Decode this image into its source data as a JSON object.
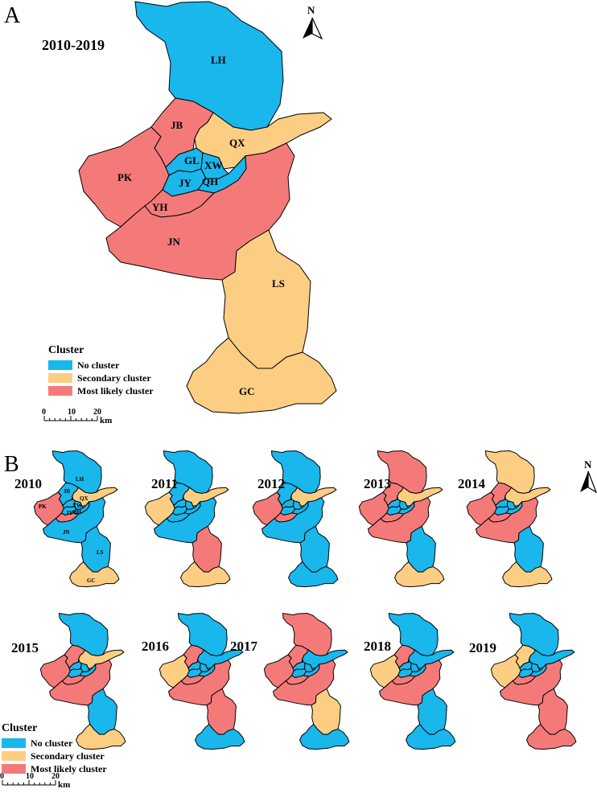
{
  "panel_a": {
    "letter": "A",
    "period": "2010-2019",
    "north": "N",
    "districts": [
      {
        "code": "LH",
        "cluster": "none"
      },
      {
        "code": "JB",
        "cluster": "most"
      },
      {
        "code": "QX",
        "cluster": "secondary"
      },
      {
        "code": "PK",
        "cluster": "most"
      },
      {
        "code": "GL",
        "cluster": "none"
      },
      {
        "code": "XW",
        "cluster": "none"
      },
      {
        "code": "JY",
        "cluster": "none"
      },
      {
        "code": "QH",
        "cluster": "none"
      },
      {
        "code": "YH",
        "cluster": "most"
      },
      {
        "code": "JN",
        "cluster": "most"
      },
      {
        "code": "LS",
        "cluster": "secondary"
      },
      {
        "code": "GC",
        "cluster": "secondary"
      }
    ]
  },
  "panel_b": {
    "letter": "B",
    "north": "N",
    "years": [
      {
        "year": "2010",
        "LH": "none",
        "JB": "none",
        "QX": "secondary",
        "PK": "most",
        "CORE": "none",
        "YH": "most",
        "JN": "none",
        "LS": "none",
        "GC": "secondary"
      },
      {
        "year": "2011",
        "LH": "none",
        "JB": "none",
        "QX": "secondary",
        "PK": "secondary",
        "CORE": "none",
        "YH": "none",
        "JN": "none",
        "LS": "most",
        "GC": "secondary"
      },
      {
        "year": "2012",
        "LH": "none",
        "JB": "none",
        "QX": "secondary",
        "PK": "most",
        "CORE": "none",
        "YH": "most",
        "JN": "none",
        "LS": "none",
        "GC": "none"
      },
      {
        "year": "2013",
        "LH": "most",
        "JB": "most",
        "QX": "secondary",
        "PK": "most",
        "CORE": "none",
        "YH": "most",
        "JN": "most",
        "LS": "none",
        "GC": "secondary"
      },
      {
        "year": "2014",
        "LH": "secondary",
        "JB": "most",
        "QX": "secondary",
        "PK": "most",
        "CORE": "none",
        "YH": "most",
        "JN": "most",
        "LS": "none",
        "GC": "secondary"
      },
      {
        "year": "2015",
        "LH": "none",
        "JB": "most",
        "QX": "secondary",
        "PK": "most",
        "CORE": "none",
        "YH": "most",
        "JN": "most",
        "LS": "none",
        "GC": "secondary"
      },
      {
        "year": "2016",
        "LH": "none",
        "JB": "most",
        "QX": "none",
        "PK": "secondary",
        "CORE": "none",
        "YH": "most",
        "JN": "most",
        "LS": "most",
        "GC": "none"
      },
      {
        "year": "2017",
        "LH": "most",
        "JB": "most",
        "QX": "none",
        "PK": "most",
        "CORE": "none",
        "YH": "most",
        "JN": "most",
        "LS": "secondary",
        "GC": "none"
      },
      {
        "year": "2018",
        "LH": "none",
        "JB": "most",
        "QX": "none",
        "PK": "secondary",
        "CORE": "none",
        "YH": "most",
        "JN": "most",
        "LS": "none",
        "GC": "none"
      },
      {
        "year": "2019",
        "LH": "none",
        "JB": "secondary",
        "QX": "none",
        "PK": "secondary",
        "CORE": "none",
        "YH": "most",
        "JN": "most",
        "LS": "most",
        "GC": "most"
      }
    ],
    "mini_labels_2010": [
      "LH",
      "JB",
      "QX",
      "PK",
      "XW",
      "QH",
      "JY",
      "JN",
      "LS",
      "GC"
    ]
  },
  "legend": {
    "title": "Cluster",
    "items": [
      {
        "label": "No cluster",
        "color": "#19b7ec"
      },
      {
        "label": "Secondary  cluster",
        "color": "#fcce83"
      },
      {
        "label": "Most likely cluster",
        "color": "#f47a7a"
      }
    ],
    "scale_ticks": [
      "0",
      "10",
      "20"
    ],
    "scale_unit": "km"
  },
  "colors": {
    "none": "#19b7ec",
    "secondary": "#fcce83",
    "most": "#f47a7a",
    "border": "#000000"
  }
}
